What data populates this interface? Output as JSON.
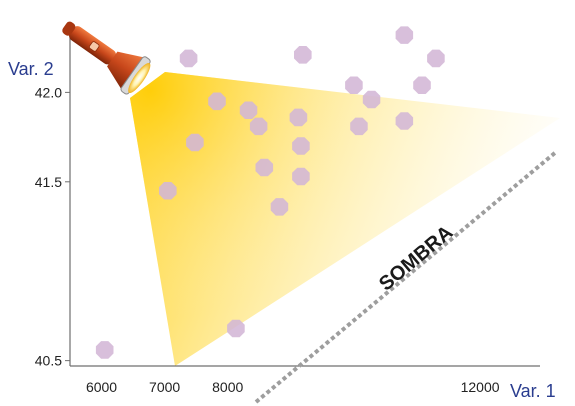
{
  "chart_data": {
    "type": "scatter",
    "title": "",
    "xlabel": "Var. 1",
    "ylabel": "Var. 2",
    "x_ticks": [
      6000,
      7000,
      8000,
      12000
    ],
    "y_ticks": [
      40.5,
      41.5,
      42.0
    ],
    "y_tick_labels": [
      "40.5",
      "41.5",
      "42.0"
    ],
    "xlim": [
      5500,
      12950
    ],
    "ylim": [
      40.47,
      42.36
    ],
    "annotations": [
      {
        "text": "SOMBRA"
      }
    ],
    "colors": {
      "point": "#d3b6d6",
      "axis_label": "#2a3d8f",
      "beam": "#ffd21e",
      "shadow_line": "#9e9e9e",
      "flashlight": "#c8471b"
    },
    "points": [
      {
        "x": 6050,
        "y": 40.56
      },
      {
        "x": 7050,
        "y": 41.45
      },
      {
        "x": 7380,
        "y": 42.19
      },
      {
        "x": 7480,
        "y": 41.72
      },
      {
        "x": 7830,
        "y": 41.95
      },
      {
        "x": 8130,
        "y": 40.68
      },
      {
        "x": 8330,
        "y": 41.9
      },
      {
        "x": 8490,
        "y": 41.81
      },
      {
        "x": 8580,
        "y": 41.58
      },
      {
        "x": 8820,
        "y": 41.36
      },
      {
        "x": 9120,
        "y": 41.86
      },
      {
        "x": 9160,
        "y": 41.7
      },
      {
        "x": 9160,
        "y": 41.53
      },
      {
        "x": 9190,
        "y": 42.21
      },
      {
        "x": 10000,
        "y": 42.04
      },
      {
        "x": 10080,
        "y": 41.81
      },
      {
        "x": 10280,
        "y": 41.96
      },
      {
        "x": 10800,
        "y": 41.84
      },
      {
        "x": 10800,
        "y": 42.32
      },
      {
        "x": 11080,
        "y": 42.04
      },
      {
        "x": 11300,
        "y": 42.19
      }
    ]
  }
}
